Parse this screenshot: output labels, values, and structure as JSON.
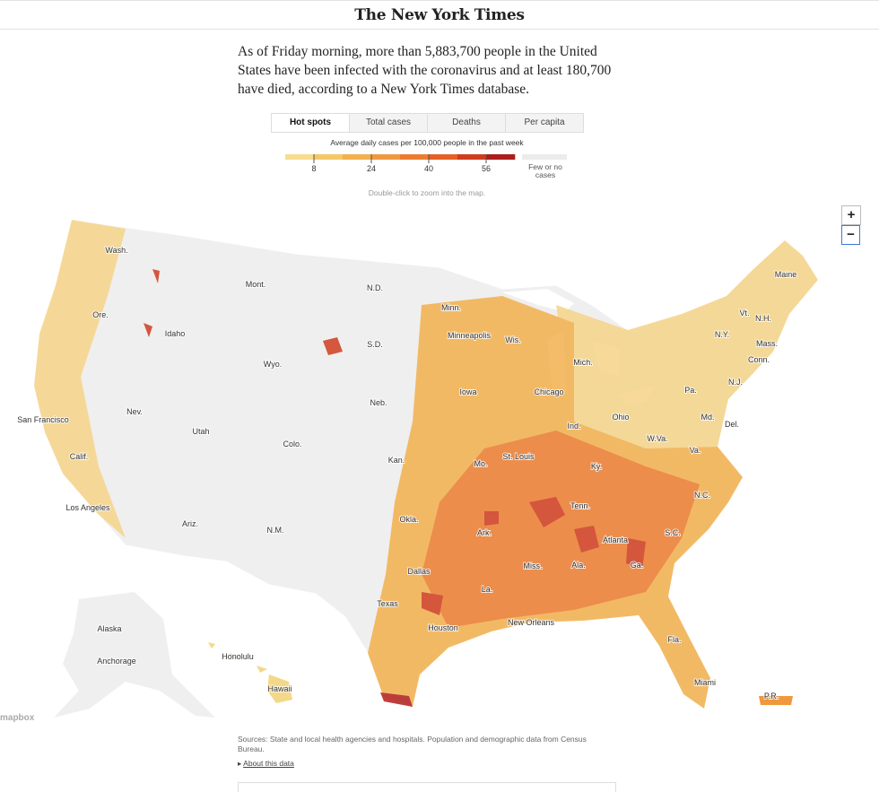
{
  "header": {
    "logo": "The New York Times"
  },
  "intro": "As of Friday morning, more than 5,883,700 people in the United States have been infected with the coronavirus and at least 180,700 have died, according to a New York Times database.",
  "tabs": [
    "Hot spots",
    "Total cases",
    "Deaths",
    "Per capita"
  ],
  "legend": {
    "title": "Average daily cases per 100,000 people in the past week",
    "range": [
      0,
      64
    ],
    "ticks": [
      8,
      24,
      40,
      56
    ],
    "colors": [
      "#f8dc8f",
      "#f5c766",
      "#f3b04e",
      "#f0983e",
      "#ec7d30",
      "#e46024",
      "#cf3c1e",
      "#ad1d1c"
    ],
    "no_data_color": "#ececec",
    "no_data_label": "Few or no cases"
  },
  "hint": "Double-click to zoom into the map.",
  "zoom": [
    "+",
    "−"
  ],
  "map": {
    "attribution": "mapbox",
    "labels": [
      "Wash.",
      "Mont.",
      "N.D.",
      "Minn.",
      "Ore.",
      "Idaho",
      "S.D.",
      "Minneapolis",
      "Wis.",
      "Mich.",
      "Maine",
      "Vt.",
      "N.H.",
      "N.Y.",
      "Mass.",
      "Conn.",
      "Pa.",
      "N.J.",
      "Wyo.",
      "Neb.",
      "Iowa",
      "Chicago",
      "Ohio",
      "Md.",
      "Del.",
      "Nev.",
      "Utah",
      "Colo.",
      "Ind.",
      "W.Va.",
      "Va.",
      "Kan.",
      "Mo.",
      "St. Louis",
      "Ky.",
      "San Francisco",
      "Calif.",
      "N.C.",
      "Tenn.",
      "Okla.",
      "Ark.",
      "Los Angeles",
      "Ariz.",
      "N.M.",
      "S.C.",
      "Atlanta",
      "Miss.",
      "Ala.",
      "Ga.",
      "Dallas",
      "La.",
      "Texas",
      "Houston",
      "New Orleans",
      "Fla.",
      "Alaska",
      "Anchorage",
      "Honolulu",
      "Hawaii",
      "Miami",
      "P.R."
    ]
  },
  "sources": "Sources: State and local health agencies and hospitals. Population and demographic data from Census Bureau.",
  "about": "About this data"
}
